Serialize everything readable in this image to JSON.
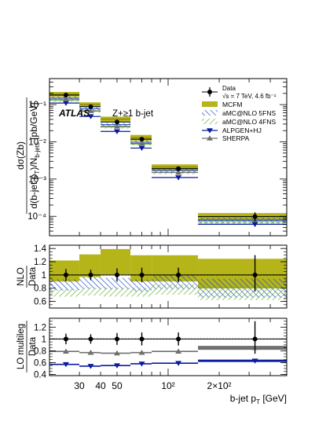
{
  "chart_data": [
    {
      "type": "scatter",
      "panel": "main",
      "title": "Z+≥1 b-jet",
      "atlas_label": "ATLAS",
      "ylabel": "dσ(Zb)/d(b-jet p_T)/N_b-jets [pb/GeV]",
      "yscale": "log",
      "ylim": [
        3e-05,
        0.5
      ],
      "y_ticks": [
        {
          "value": 0.1,
          "label": "10⁻¹"
        },
        {
          "value": 0.01,
          "label": "10⁻²"
        },
        {
          "value": 0.001,
          "label": "10⁻³"
        },
        {
          "value": 0.0001,
          "label": "10⁻⁴"
        }
      ],
      "legend_position": "top-right",
      "legend": {
        "data": "Data",
        "data_sub": "√s = 7 TeV, 4.6 fb⁻¹",
        "mcfm": "MCFM",
        "amc5": "aMC@NLO 5FNS",
        "amc4": "aMC@NLO 4FNS",
        "alpgen": "ALPGEN+HJ",
        "sherpa": "SHERPA"
      },
      "bins": [
        [
          20,
          30
        ],
        [
          30,
          40
        ],
        [
          40,
          60
        ],
        [
          60,
          80
        ],
        [
          80,
          150
        ],
        [
          150,
          500
        ]
      ],
      "data": {
        "x": [
          25,
          35,
          50,
          70,
          115,
          325
        ],
        "y": [
          0.18,
          0.088,
          0.034,
          0.0118,
          0.0019,
          9.8e-05
        ],
        "yerr_rel_down": [
          0.08,
          0.08,
          0.09,
          0.1,
          0.11,
          0.25
        ],
        "yerr_rel_up": [
          0.08,
          0.08,
          0.09,
          0.1,
          0.11,
          0.3
        ]
      },
      "mcfm": {
        "y": [
          0.19,
          0.1,
          0.041,
          0.013,
          0.0021,
          0.0001
        ],
        "band_rel": [
          0.15,
          0.15,
          0.16,
          0.18,
          0.18,
          0.22
        ]
      },
      "amc5": {
        "y": [
          0.15,
          0.077,
          0.029,
          0.0098,
          0.0017,
          7.8e-05
        ],
        "band_rel": [
          0.1,
          0.1,
          0.1,
          0.11,
          0.12,
          0.18
        ]
      },
      "amc4": {
        "y": [
          0.13,
          0.066,
          0.025,
          0.0087,
          0.0015,
          7.2e-05
        ],
        "band_rel": [
          0.08,
          0.08,
          0.09,
          0.09,
          0.1,
          0.15
        ]
      },
      "alpgen": {
        "y": [
          0.11,
          0.048,
          0.019,
          0.0068,
          0.0011,
          6.1e-05
        ]
      },
      "sherpa": {
        "y": [
          0.14,
          0.068,
          0.026,
          0.0091,
          0.0015,
          8.2e-05
        ]
      }
    },
    {
      "type": "scatter",
      "panel": "nlo_ratio",
      "ylabel_num": "NLO",
      "ylabel_den": "Data",
      "ylim": [
        0.5,
        1.45
      ],
      "y_ticks": [
        0.6,
        0.8,
        1,
        1.2,
        1.4
      ],
      "reference_line": 1,
      "data": {
        "y": [
          1,
          1,
          1,
          1,
          1,
          1
        ],
        "err_down": [
          0.09,
          0.08,
          0.1,
          0.11,
          0.11,
          0.25
        ],
        "err_up": [
          0.09,
          0.08,
          0.1,
          0.11,
          0.11,
          0.3
        ]
      },
      "mcfm": {
        "y": [
          1.06,
          1.14,
          1.2,
          1.1,
          1.1,
          1.02
        ],
        "band_rel": [
          0.15,
          0.15,
          0.16,
          0.18,
          0.18,
          0.22
        ]
      },
      "amc5": {
        "y": [
          0.85,
          0.88,
          0.87,
          0.84,
          0.89,
          0.8
        ],
        "band_rel": [
          0.1,
          0.1,
          0.1,
          0.11,
          0.12,
          0.18
        ]
      },
      "amc4": {
        "y": [
          0.73,
          0.75,
          0.74,
          0.74,
          0.78,
          0.73
        ],
        "band_rel": [
          0.08,
          0.08,
          0.09,
          0.09,
          0.1,
          0.15
        ]
      }
    },
    {
      "type": "scatter",
      "panel": "lo_ratio",
      "ylabel_num": "LO multileg",
      "ylabel_den": "Data",
      "ylim": [
        0.38,
        1.35
      ],
      "y_ticks": [
        0.4,
        0.6,
        0.8,
        1,
        1.2
      ],
      "reference_line": 1,
      "xlabel": "b-jet p_T [GeV]",
      "xscale": "log",
      "xlim": [
        20,
        500
      ],
      "x_ticks": [
        {
          "value": 30,
          "label": "30"
        },
        {
          "value": 40,
          "label": "40"
        },
        {
          "value": 50,
          "label": "50"
        },
        {
          "value": 100,
          "label": "10²"
        },
        {
          "value": 200,
          "label": "2×10²"
        }
      ],
      "data": {
        "y": [
          1,
          1,
          1,
          1,
          1,
          1
        ],
        "err_down": [
          0.09,
          0.08,
          0.1,
          0.11,
          0.11,
          0.25
        ],
        "err_up": [
          0.09,
          0.08,
          0.1,
          0.11,
          0.11,
          0.3
        ]
      },
      "alpgen": {
        "y": [
          0.57,
          0.54,
          0.55,
          0.58,
          0.59,
          0.63
        ]
      },
      "sherpa": {
        "y": [
          0.79,
          0.77,
          0.76,
          0.77,
          0.79,
          0.85
        ]
      }
    }
  ],
  "colors": {
    "mcfm": "#b5b51a",
    "amc5": "#1a44c8",
    "amc4": "#5fae2c",
    "alpgen": "#0a1aa0",
    "sherpa": "#707070",
    "data": "#000000"
  }
}
